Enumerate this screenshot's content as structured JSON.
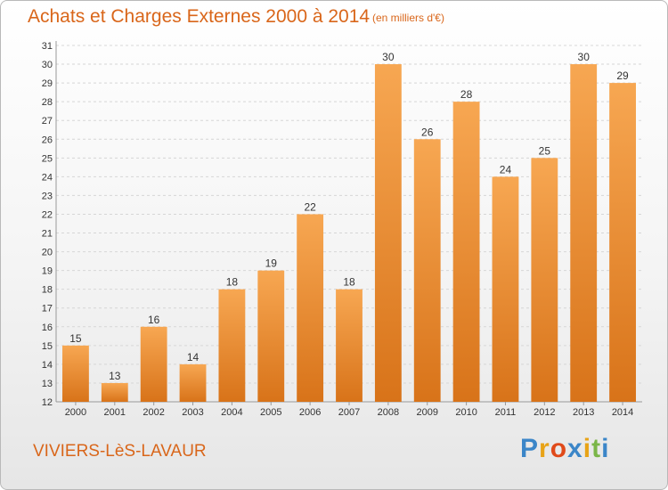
{
  "chart_data": {
    "type": "bar",
    "title": "Achats et Charges Externes 2000 à 2014",
    "subtitle": "(en milliers d'€)",
    "categories": [
      "2000",
      "2001",
      "2002",
      "2003",
      "2004",
      "2005",
      "2006",
      "2007",
      "2008",
      "2009",
      "2010",
      "2011",
      "2012",
      "2013",
      "2014"
    ],
    "values": [
      15,
      13,
      16,
      14,
      18,
      19,
      22,
      18,
      30,
      26,
      28,
      24,
      25,
      30,
      29
    ],
    "ylim": [
      12,
      31
    ],
    "yticks": [
      12,
      13,
      14,
      15,
      16,
      17,
      18,
      19,
      20,
      21,
      22,
      23,
      24,
      25,
      26,
      27,
      28,
      29,
      30,
      31
    ],
    "grid": true,
    "bar_color": "#f0963f",
    "xlabel": "",
    "ylabel": ""
  },
  "location": "VIVIERS-LèS-LAVAUR",
  "brand": {
    "letters": [
      "P",
      "r",
      "o",
      "x",
      "i",
      "t",
      "i"
    ],
    "colors": [
      "#3b86c8",
      "#e8a317",
      "#e04a1a",
      "#3b86c8",
      "#e8a317",
      "#7ab648",
      "#3b86c8"
    ]
  },
  "colors": {
    "accent": "#d9661a",
    "bar": "#f0963f"
  }
}
